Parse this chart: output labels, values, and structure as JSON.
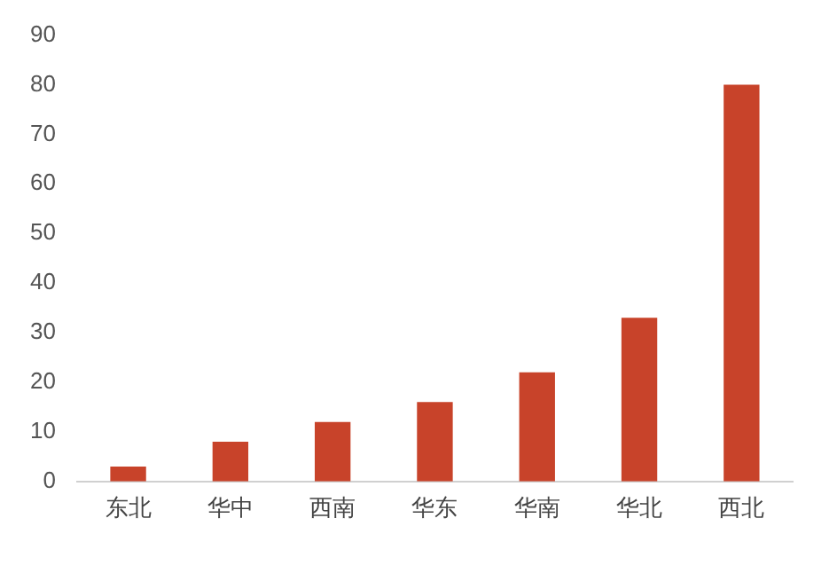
{
  "chart_data": {
    "type": "bar",
    "categories": [
      "东北",
      "华中",
      "西南",
      "华东",
      "华南",
      "华北",
      "西北"
    ],
    "values": [
      3,
      8,
      12,
      16,
      22,
      33,
      80
    ],
    "color": "#c8432a",
    "ylim": [
      0,
      90
    ],
    "yticks": [
      0,
      10,
      20,
      30,
      40,
      50,
      60,
      70,
      80,
      90
    ],
    "grid": false,
    "legend": false
  }
}
